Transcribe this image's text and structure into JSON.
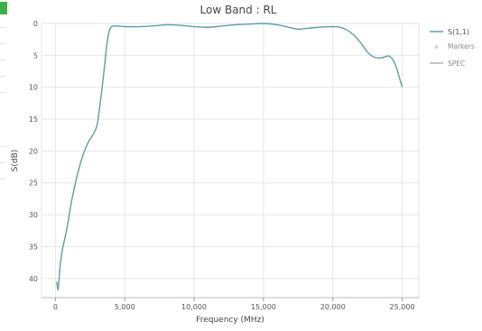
{
  "chart_data": {
    "type": "line",
    "title": "Low Band : RL",
    "xlabel": "Frequency (MHz)",
    "ylabel": "S(dB)",
    "xlim": [
      -1000,
      26200
    ],
    "ylim": [
      0,
      43
    ],
    "y_reversed": true,
    "x_ticks": [
      0,
      5000,
      10000,
      15000,
      20000,
      25000
    ],
    "x_tick_labels": [
      "0",
      "5,000",
      "10,000",
      "15,000",
      "20,000",
      "25,000"
    ],
    "y_ticks": [
      0,
      5,
      10,
      15,
      20,
      25,
      30,
      35,
      40
    ],
    "y_tick_labels": [
      "0",
      "5",
      "10",
      "15",
      "20",
      "25",
      "30",
      "35",
      "40"
    ],
    "grid": true,
    "legend_position": "top-right",
    "series": [
      {
        "name": "S(1,1)",
        "color": "#5b9fa3",
        "x": [
          100,
          180,
          250,
          320,
          400,
          500,
          650,
          800,
          1000,
          1200,
          1500,
          1800,
          2100,
          2400,
          2700,
          3000,
          3200,
          3400,
          3550,
          3700,
          3850,
          4000,
          4200,
          4500,
          5000,
          6000,
          7000,
          8000,
          9000,
          10000,
          11000,
          12000,
          13000,
          14000,
          15000,
          16000,
          17000,
          17500,
          18000,
          19000,
          20000,
          20500,
          21000,
          21500,
          22000,
          22500,
          23000,
          23500,
          24000,
          24300,
          24600,
          24800,
          25000
        ],
        "y": [
          40.5,
          41.8,
          40.5,
          38.5,
          37,
          35.5,
          34,
          32.5,
          30,
          27.5,
          24.5,
          22,
          20,
          18.5,
          17.5,
          16,
          13,
          9.5,
          6.5,
          3.5,
          1.5,
          0.6,
          0.4,
          0.4,
          0.5,
          0.5,
          0.4,
          0.2,
          0.3,
          0.5,
          0.6,
          0.4,
          0.2,
          0.1,
          0.0,
          0.2,
          0.7,
          0.9,
          0.8,
          0.6,
          0.5,
          0.6,
          1.0,
          1.8,
          3.0,
          4.5,
          5.3,
          5.4,
          5.1,
          5.6,
          7.0,
          8.5,
          10.0
        ]
      },
      {
        "name": "Markers",
        "color": "#a8bcc8",
        "x": [],
        "y": []
      },
      {
        "name": "SPEC",
        "color": "#c4c4cc",
        "x": [],
        "y": []
      }
    ]
  }
}
